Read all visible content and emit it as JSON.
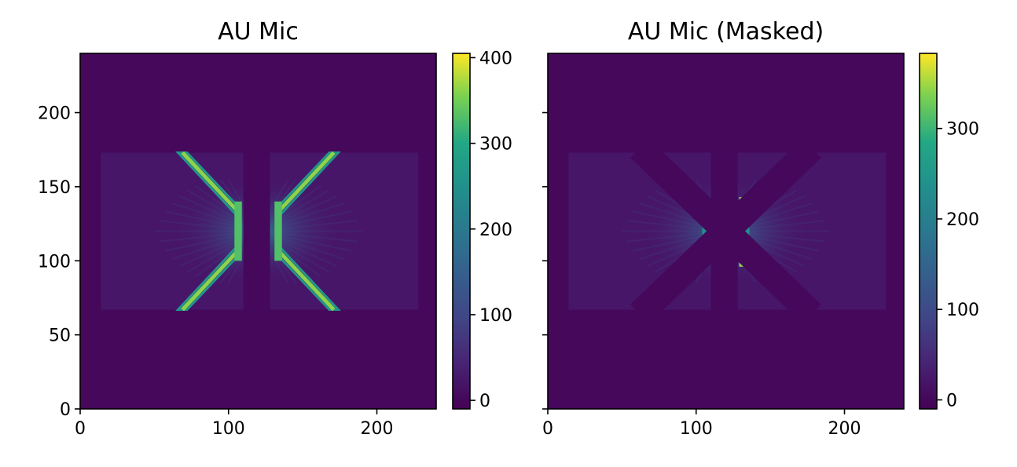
{
  "chart_data": [
    {
      "type": "heatmap",
      "title": "AU Mic",
      "xlabel": "",
      "ylabel": "",
      "xlim": [
        0,
        240
      ],
      "ylim": [
        0,
        240
      ],
      "xticks": [
        0,
        100,
        200
      ],
      "xtick_labels": [
        "0",
        "100",
        "200"
      ],
      "yticks": [
        0,
        50,
        100,
        150,
        200
      ],
      "ytick_labels": [
        "0",
        "50",
        "100",
        "150",
        "200"
      ],
      "y_tick_labels_shown": true,
      "image_extent": {
        "x": [
          0,
          240
        ],
        "y": [
          0,
          240
        ]
      },
      "data_region": {
        "x": [
          14,
          228
        ],
        "y": [
          67,
          173
        ]
      },
      "center": [
        120,
        120
      ],
      "masked": false,
      "colormap": "viridis",
      "background_value": 0,
      "colorbar": {
        "range": [
          -10,
          405
        ],
        "ticks": [
          0,
          100,
          200,
          300,
          400
        ],
        "tick_labels": [
          "0",
          "100",
          "200",
          "300",
          "400"
        ]
      }
    },
    {
      "type": "heatmap",
      "title": "AU Mic (Masked)",
      "xlabel": "",
      "ylabel": "",
      "xlim": [
        0,
        240
      ],
      "ylim": [
        0,
        240
      ],
      "xticks": [
        0,
        100,
        200
      ],
      "xtick_labels": [
        "0",
        "100",
        "200"
      ],
      "yticks": [
        0,
        50,
        100,
        150,
        200
      ],
      "ytick_labels": [],
      "y_tick_labels_shown": false,
      "image_extent": {
        "x": [
          0,
          240
        ],
        "y": [
          0,
          240
        ]
      },
      "data_region": {
        "x": [
          14,
          228
        ],
        "y": [
          67,
          173
        ]
      },
      "center": [
        120,
        120
      ],
      "masked": true,
      "colormap": "viridis",
      "background_value": 0,
      "colorbar": {
        "range": [
          -10,
          383
        ],
        "ticks": [
          0,
          100,
          200,
          300
        ],
        "tick_labels": [
          "0",
          "100",
          "200",
          "300"
        ]
      }
    }
  ]
}
